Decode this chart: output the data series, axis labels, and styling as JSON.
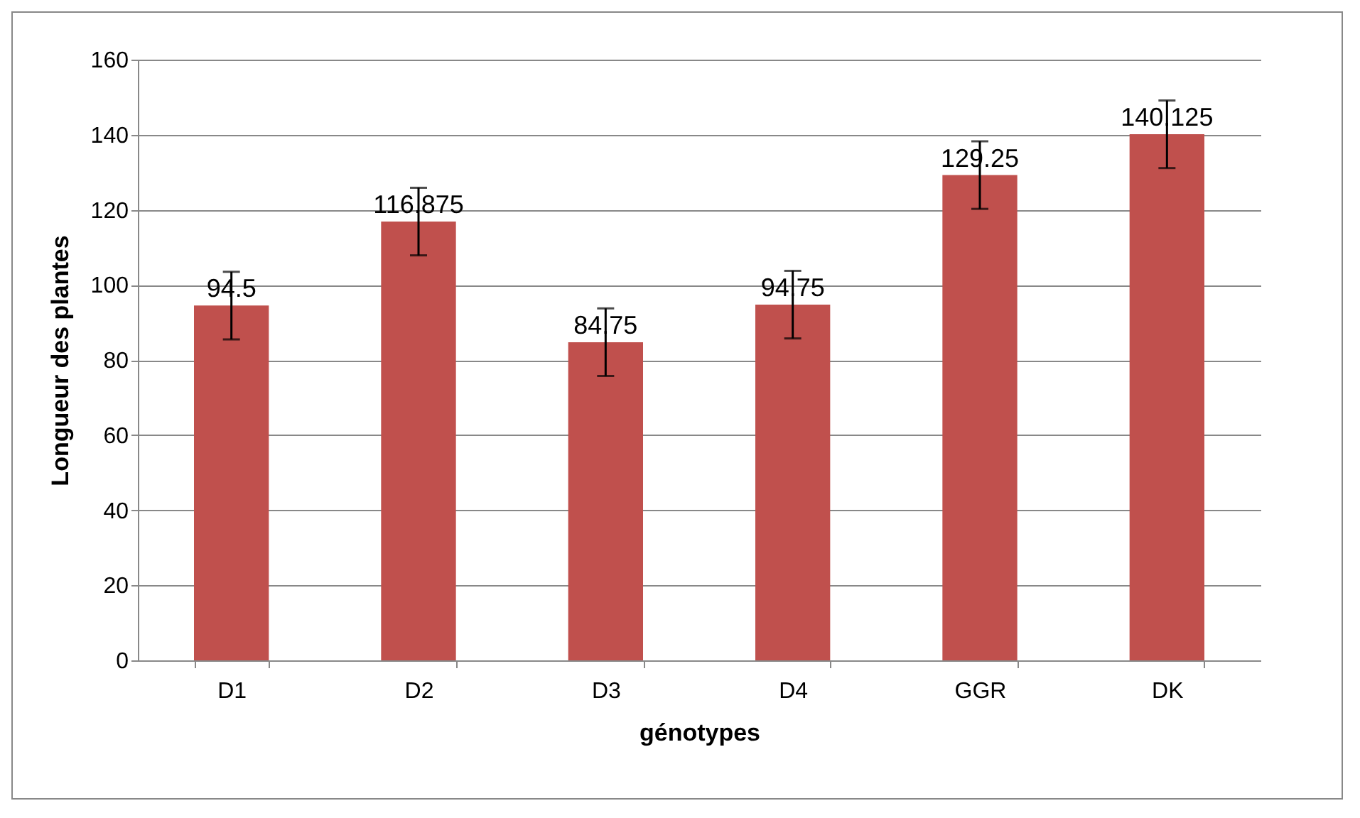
{
  "chart_data": {
    "type": "bar",
    "xlabel": "génotypes",
    "ylabel": "Longueur des plantes",
    "categories": [
      "D1",
      "D2",
      "D3",
      "D4",
      "GGR",
      "DK"
    ],
    "values": [
      94.5,
      116.875,
      84.75,
      94.75,
      129.25,
      140.125
    ],
    "errors": [
      9,
      9,
      9,
      9,
      9,
      9
    ],
    "color": "#c0504d",
    "ylim": [
      0,
      160
    ],
    "yticks": [
      0,
      20,
      40,
      60,
      80,
      100,
      120,
      140,
      160
    ],
    "grid": "y",
    "data_labels": true
  }
}
